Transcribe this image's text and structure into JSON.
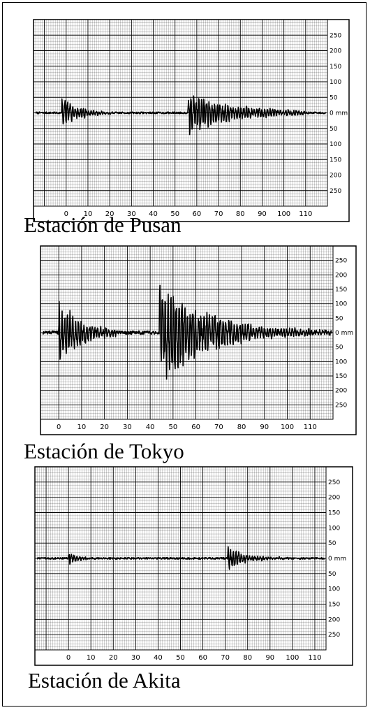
{
  "colors": {
    "grid": "#000000",
    "background": "#ffffff",
    "trace": "#000000"
  },
  "chart_data": [
    {
      "type": "line",
      "title": "Estación de Pusan",
      "xlabel": "",
      "ylabel": "",
      "xlim": [
        -15,
        120
      ],
      "ylim": [
        -300,
        300
      ],
      "x_ticks": [
        "0",
        "10",
        "20",
        "30",
        "40",
        "50",
        "60",
        "70",
        "80",
        "90",
        "100",
        "110"
      ],
      "y_tick_labels": [
        "250",
        "200",
        "150",
        "100",
        "50",
        "0 mm",
        "50",
        "100",
        "150",
        "200",
        "250"
      ],
      "grid": true,
      "events": [
        {
          "start": -2,
          "end": 22,
          "amp": 55,
          "decay": 0.13
        },
        {
          "start": 56,
          "end": 110,
          "amp": 75,
          "decay": 0.045
        }
      ],
      "noise": 3
    },
    {
      "type": "line",
      "title": "Estación de Tokyo",
      "xlabel": "",
      "ylabel": "",
      "xlim": [
        -8,
        120
      ],
      "ylim": [
        -300,
        300
      ],
      "x_ticks": [
        "0",
        "10",
        "20",
        "30",
        "40",
        "50",
        "60",
        "70",
        "80",
        "90",
        "100",
        "110"
      ],
      "y_tick_labels": [
        "250",
        "200",
        "150",
        "100",
        "50",
        "0 mm",
        "50",
        "100",
        "150",
        "200",
        "250"
      ],
      "grid": true,
      "events": [
        {
          "start": 0,
          "end": 26,
          "amp": 120,
          "decay": 0.1
        },
        {
          "start": 44,
          "end": 120,
          "amp": 190,
          "decay": 0.045
        }
      ],
      "noise": 6
    },
    {
      "type": "line",
      "title": "Estación de Akita",
      "xlabel": "",
      "ylabel": "",
      "xlim": [
        -15,
        115
      ],
      "ylim": [
        -300,
        300
      ],
      "x_ticks": [
        "0",
        "10",
        "20",
        "30",
        "40",
        "50",
        "60",
        "70",
        "80",
        "90",
        "100",
        "110"
      ],
      "y_tick_labels": [
        "250",
        "200",
        "150",
        "100",
        "50",
        "0 mm",
        "50",
        "100",
        "150",
        "200",
        "250"
      ],
      "grid": true,
      "events": [
        {
          "start": 0,
          "end": 8,
          "amp": 25,
          "decay": 0.25
        },
        {
          "start": 71,
          "end": 110,
          "amp": 40,
          "decay": 0.12
        }
      ],
      "noise": 3
    }
  ]
}
